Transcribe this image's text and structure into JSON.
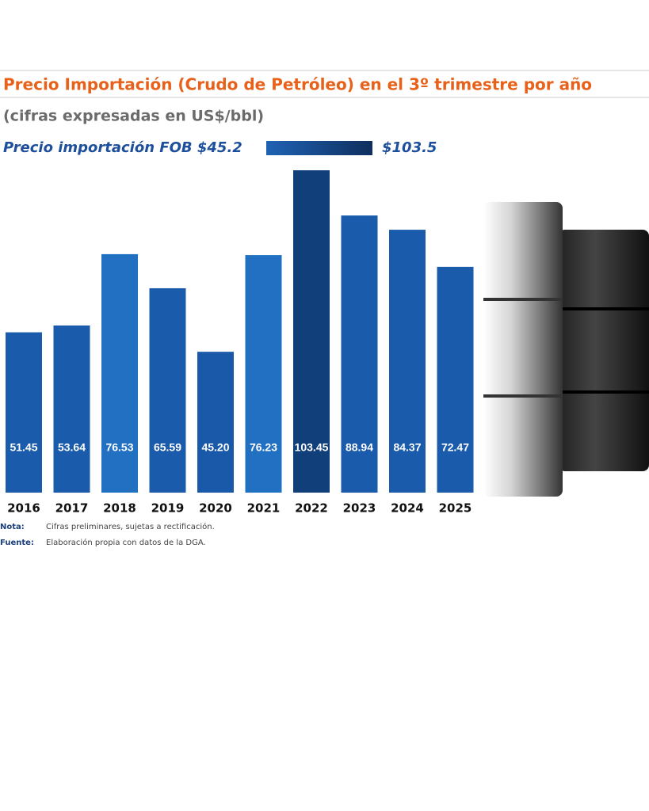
{
  "chart_data": {
    "type": "bar",
    "title": "Precio Importación (Crudo de Petróleo) en el 3º trimestre por año",
    "subtitle": "(cifras expresadas en US$/bbl)",
    "legend": {
      "label": "Precio importación FOB $45.2",
      "max_label": "$103.5",
      "colors": [
        "#1f62b4",
        "#0f2f5e"
      ]
    },
    "categories": [
      "2016",
      "2017",
      "2018",
      "2019",
      "2020",
      "2021",
      "2022",
      "2023",
      "2024",
      "2025"
    ],
    "values": [
      51.45,
      53.64,
      76.53,
      65.59,
      45.2,
      76.23,
      103.45,
      88.94,
      84.37,
      72.47
    ],
    "value_labels": [
      "51.45",
      "53.64",
      "76.53",
      "65.59",
      "45.20",
      "76.23",
      "103.45",
      "88.94",
      "84.37",
      "72.47"
    ],
    "colors": [
      "#1a5bac",
      "#1a5bac",
      "#2170c2",
      "#1a5bac",
      "#1a59a9",
      "#2170c2",
      "#113f7a",
      "#1a5bac",
      "#1a5bac",
      "#1a5bac"
    ],
    "notes": [
      {
        "label": "Nota:",
        "text": "Cifras preliminares, sujetas a rectificación."
      },
      {
        "label": "Fuente:",
        "text": "Elaboración propia con datos de la DGA."
      }
    ]
  }
}
